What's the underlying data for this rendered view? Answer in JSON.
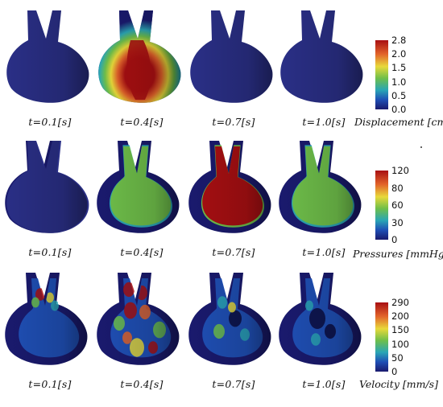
{
  "rows": [
    {
      "quantity": "Displacement",
      "colorbar_label": "Displacement [cm]",
      "ticks": [
        "2.8",
        "2.0",
        "1.5",
        "1.0",
        "0.5",
        "0.0"
      ],
      "panels": [
        {
          "time": "t=0.1[s]",
          "state": "displacement-near-zero"
        },
        {
          "time": "t=0.4[s]",
          "state": "displacement-peak"
        },
        {
          "time": "t=0.7[s]",
          "state": "displacement-near-zero"
        },
        {
          "time": "t=1.0[s]",
          "state": "displacement-near-zero"
        }
      ]
    },
    {
      "quantity": "Pressures",
      "colorbar_label": "Pressures [mmHg]",
      "ticks": [
        "120",
        "80",
        "60",
        "30",
        "0"
      ],
      "panels": [
        {
          "time": "t=0.1[s]",
          "state": "pressure-low"
        },
        {
          "time": "t=0.4[s]",
          "state": "pressure-medium"
        },
        {
          "time": "t=0.7[s]",
          "state": "pressure-high"
        },
        {
          "time": "t=1.0[s]",
          "state": "pressure-medium"
        }
      ]
    },
    {
      "quantity": "Velocity",
      "colorbar_label": "Velocity [mm/s]",
      "ticks": [
        "290",
        "200",
        "150",
        "100",
        "50",
        "0"
      ],
      "panels": [
        {
          "time": "t=0.1[s]",
          "state": "velocity-jets-at-inlets"
        },
        {
          "time": "t=0.4[s]",
          "state": "velocity-peak"
        },
        {
          "time": "t=0.7[s]",
          "state": "velocity-residual"
        },
        {
          "time": "t=1.0[s]",
          "state": "velocity-low"
        }
      ]
    }
  ],
  "colors": {
    "background_body": "#2a2f86",
    "scale_blue_dark": "#1a1a6e",
    "scale_blue": "#1f4fb5",
    "scale_cyan": "#2aa6b5",
    "scale_green": "#6fbf4a",
    "scale_yellow": "#e8d93a",
    "scale_orange": "#e2632a",
    "scale_red": "#a80f12"
  }
}
